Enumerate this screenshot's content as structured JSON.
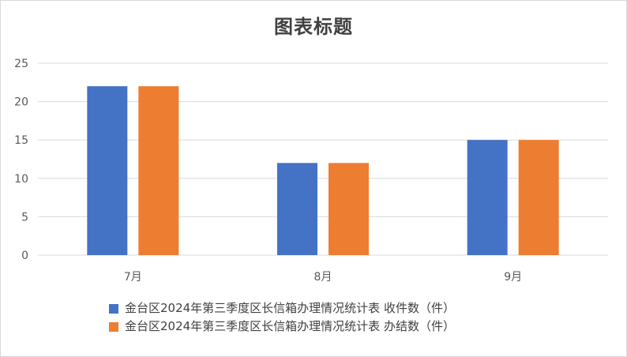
{
  "colors": {
    "series1": "#4472c4",
    "series2": "#ed7d31",
    "grid": "#d9d9d9"
  },
  "chart_data": {
    "type": "bar",
    "title": "图表标题",
    "categories": [
      "7月",
      "8月",
      "9月"
    ],
    "series": [
      {
        "name": "金台区2024年第三季度区长信箱办理情况统计表 收件数（件）",
        "values": [
          22,
          12,
          15
        ]
      },
      {
        "name": "金台区2024年第三季度区长信箱办理情况统计表 办结数（件）",
        "values": [
          22,
          12,
          15
        ]
      }
    ],
    "yticks": [
      "0",
      "5",
      "10",
      "15",
      "20",
      "25"
    ],
    "ylim": [
      0,
      25
    ],
    "grid": true,
    "legend": "bottom"
  }
}
